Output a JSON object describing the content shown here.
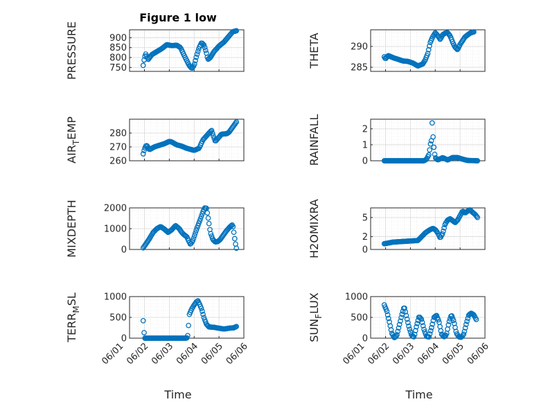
{
  "figure": {
    "title": "Figure 1 low"
  },
  "colors": {
    "marker": "#0072BD",
    "axis": "#262626",
    "grid": "#d9d9d9"
  },
  "chart_data": [
    {
      "type": "scatter",
      "panel": "pressure",
      "ylabel": "PRESSURE",
      "ylim": [
        730,
        940
      ],
      "yticks": [
        750,
        800,
        850,
        900
      ],
      "ytick_labels": [
        "750",
        "800",
        "850",
        "900"
      ],
      "xlim": [
        0,
        5
      ],
      "xtick_labels": [
        "06/01",
        "06/02",
        "06/03",
        "06/04",
        "06/05",
        "06/06"
      ],
      "show_xticks": false,
      "keypoints": [
        [
          0.95,
          760
        ],
        [
          1.0,
          800
        ],
        [
          1.05,
          818
        ],
        [
          1.15,
          790
        ],
        [
          1.3,
          815
        ],
        [
          1.5,
          830
        ],
        [
          1.7,
          845
        ],
        [
          1.9,
          865
        ],
        [
          2.1,
          860
        ],
        [
          2.3,
          862
        ],
        [
          2.45,
          850
        ],
        [
          2.6,
          810
        ],
        [
          2.7,
          785
        ],
        [
          2.8,
          760
        ],
        [
          2.9,
          745
        ],
        [
          3.0,
          760
        ],
        [
          3.1,
          810
        ],
        [
          3.2,
          850
        ],
        [
          3.3,
          875
        ],
        [
          3.4,
          862
        ],
        [
          3.5,
          820
        ],
        [
          3.55,
          790
        ],
        [
          3.65,
          800
        ],
        [
          3.8,
          830
        ],
        [
          4.0,
          858
        ],
        [
          4.2,
          878
        ],
        [
          4.4,
          908
        ],
        [
          4.55,
          930
        ],
        [
          4.7,
          935
        ]
      ]
    },
    {
      "type": "scatter",
      "panel": "theta",
      "ylabel": "THETA",
      "ylim": [
        284,
        294
      ],
      "yticks": [
        285,
        290
      ],
      "ytick_labels": [
        "285",
        "290"
      ],
      "xlim": [
        0,
        5
      ],
      "xtick_labels": [
        "06/01",
        "06/02",
        "06/03",
        "06/04",
        "06/05",
        "06/06"
      ],
      "show_xticks": false,
      "keypoints": [
        [
          0.95,
          287.5
        ],
        [
          1.0,
          287
        ],
        [
          1.1,
          287.8
        ],
        [
          1.3,
          287.3
        ],
        [
          1.5,
          286.9
        ],
        [
          1.7,
          286.5
        ],
        [
          1.9,
          286.4
        ],
        [
          2.1,
          286
        ],
        [
          2.3,
          285.3
        ],
        [
          2.5,
          285.8
        ],
        [
          2.6,
          286.8
        ],
        [
          2.7,
          288.3
        ],
        [
          2.8,
          291
        ],
        [
          2.9,
          292.3
        ],
        [
          3.0,
          293.3
        ],
        [
          3.1,
          292.6
        ],
        [
          3.2,
          291.7
        ],
        [
          3.3,
          292.8
        ],
        [
          3.4,
          293.2
        ],
        [
          3.5,
          293.3
        ],
        [
          3.6,
          292.5
        ],
        [
          3.7,
          291
        ],
        [
          3.8,
          289.8
        ],
        [
          3.9,
          289.2
        ],
        [
          4.0,
          290.5
        ],
        [
          4.2,
          292.3
        ],
        [
          4.4,
          293.2
        ],
        [
          4.55,
          293.5
        ]
      ]
    },
    {
      "type": "scatter",
      "panel": "air_temp",
      "ylabel": "AIR_TEMP",
      "ylim": [
        260,
        290
      ],
      "yticks": [
        260,
        270,
        280
      ],
      "ytick_labels": [
        "260",
        "270",
        "280"
      ],
      "xlim": [
        0,
        5
      ],
      "xtick_labels": [
        "06/01",
        "06/02",
        "06/03",
        "06/04",
        "06/05",
        "06/06"
      ],
      "show_xticks": false,
      "keypoints": [
        [
          0.95,
          265
        ],
        [
          1.0,
          268.5
        ],
        [
          1.05,
          270.5
        ],
        [
          1.1,
          271
        ],
        [
          1.2,
          268
        ],
        [
          1.4,
          270
        ],
        [
          1.6,
          271.2
        ],
        [
          1.8,
          272.3
        ],
        [
          2.0,
          274
        ],
        [
          2.1,
          273.5
        ],
        [
          2.3,
          271.5
        ],
        [
          2.5,
          270.5
        ],
        [
          2.7,
          269
        ],
        [
          2.9,
          268
        ],
        [
          3.0,
          267.5
        ],
        [
          3.2,
          269
        ],
        [
          3.35,
          275
        ],
        [
          3.5,
          278
        ],
        [
          3.6,
          280
        ],
        [
          3.7,
          282
        ],
        [
          3.75,
          279
        ],
        [
          3.85,
          274
        ],
        [
          3.95,
          276
        ],
        [
          4.1,
          279.2
        ],
        [
          4.3,
          279.5
        ],
        [
          4.4,
          280.5
        ],
        [
          4.5,
          283
        ],
        [
          4.6,
          285.5
        ],
        [
          4.7,
          288
        ]
      ]
    },
    {
      "type": "scatter",
      "panel": "rainfall",
      "ylabel": "RAINFALL",
      "ylim": [
        0,
        2.6
      ],
      "yticks": [
        0,
        1,
        2
      ],
      "ytick_labels": [
        "0",
        "1",
        "2"
      ],
      "xlim": [
        0,
        5
      ],
      "xtick_labels": [
        "06/01",
        "06/02",
        "06/03",
        "06/04",
        "06/05",
        "06/06"
      ],
      "show_xticks": false,
      "keypoints": [
        [
          0.95,
          0
        ],
        [
          2.55,
          0
        ],
        [
          2.65,
          0.1
        ],
        [
          2.75,
          0.4
        ],
        [
          2.8,
          1.0
        ],
        [
          2.85,
          1.3
        ],
        [
          2.88,
          2.5
        ],
        [
          2.92,
          1.2
        ],
        [
          2.97,
          0.5
        ],
        [
          3.0,
          0.2
        ],
        [
          3.1,
          0.05
        ],
        [
          3.3,
          0.2
        ],
        [
          3.5,
          0.05
        ],
        [
          3.7,
          0.2
        ],
        [
          3.9,
          0.2
        ],
        [
          4.1,
          0.1
        ],
        [
          4.3,
          0.02
        ],
        [
          4.7,
          0
        ]
      ]
    },
    {
      "type": "scatter",
      "panel": "mixdepth",
      "ylabel": "MIXDEPTH",
      "ylim": [
        0,
        2000
      ],
      "yticks": [
        0,
        1000,
        2000
      ],
      "ytick_labels": [
        "0",
        "1000",
        "2000"
      ],
      "xlim": [
        0,
        5
      ],
      "xtick_labels": [
        "06/01",
        "06/02",
        "06/03",
        "06/04",
        "06/05",
        "06/06"
      ],
      "show_xticks": false,
      "keypoints": [
        [
          0.95,
          80
        ],
        [
          1.05,
          250
        ],
        [
          1.2,
          520
        ],
        [
          1.35,
          820
        ],
        [
          1.5,
          1000
        ],
        [
          1.65,
          1100
        ],
        [
          1.8,
          980
        ],
        [
          1.95,
          820
        ],
        [
          2.1,
          950
        ],
        [
          2.25,
          1150
        ],
        [
          2.4,
          1000
        ],
        [
          2.5,
          820
        ],
        [
          2.6,
          700
        ],
        [
          2.7,
          620
        ],
        [
          2.8,
          360
        ],
        [
          2.85,
          250
        ],
        [
          2.95,
          430
        ],
        [
          3.1,
          980
        ],
        [
          3.25,
          1460
        ],
        [
          3.35,
          1800
        ],
        [
          3.42,
          2000
        ],
        [
          3.5,
          1980
        ],
        [
          3.58,
          1400
        ],
        [
          3.65,
          820
        ],
        [
          3.75,
          480
        ],
        [
          3.85,
          360
        ],
        [
          3.95,
          380
        ],
        [
          4.05,
          480
        ],
        [
          4.15,
          650
        ],
        [
          4.3,
          900
        ],
        [
          4.45,
          1100
        ],
        [
          4.55,
          1200
        ],
        [
          4.6,
          800
        ],
        [
          4.65,
          350
        ],
        [
          4.7,
          60
        ]
      ]
    },
    {
      "type": "scatter",
      "panel": "h2omixra",
      "ylabel": "H2OMIXRA",
      "ylim": [
        0,
        6.5
      ],
      "yticks": [
        0,
        2,
        5
      ],
      "ytick_labels": [
        "0",
        "2",
        "5"
      ],
      "xlim": [
        0,
        5
      ],
      "xtick_labels": [
        "06/01",
        "06/02",
        "06/03",
        "06/04",
        "06/05",
        "06/06"
      ],
      "show_xticks": false,
      "keypoints": [
        [
          0.95,
          0.9
        ],
        [
          1.1,
          1.0
        ],
        [
          1.3,
          1.15
        ],
        [
          1.5,
          1.2
        ],
        [
          1.7,
          1.25
        ],
        [
          1.9,
          1.3
        ],
        [
          2.1,
          1.35
        ],
        [
          2.3,
          1.4
        ],
        [
          2.45,
          2.0
        ],
        [
          2.6,
          2.6
        ],
        [
          2.75,
          3.0
        ],
        [
          2.9,
          3.3
        ],
        [
          3.0,
          3.1
        ],
        [
          3.1,
          2.6
        ],
        [
          3.2,
          1.8
        ],
        [
          3.3,
          2.5
        ],
        [
          3.4,
          4.0
        ],
        [
          3.5,
          4.6
        ],
        [
          3.6,
          4.8
        ],
        [
          3.7,
          4.5
        ],
        [
          3.8,
          4.2
        ],
        [
          3.9,
          4.6
        ],
        [
          4.0,
          5.3
        ],
        [
          4.1,
          6.0
        ],
        [
          4.2,
          5.7
        ],
        [
          4.3,
          6.0
        ],
        [
          4.4,
          6.2
        ],
        [
          4.5,
          5.8
        ],
        [
          4.6,
          5.5
        ],
        [
          4.7,
          5.0
        ]
      ]
    },
    {
      "type": "scatter",
      "panel": "terr_msl",
      "ylabel": "TERR_MSL",
      "ylim": [
        0,
        1000
      ],
      "yticks": [
        0,
        500,
        1000
      ],
      "ytick_labels": [
        "0",
        "500",
        "1000"
      ],
      "xlim": [
        0,
        5
      ],
      "xtick_labels": [
        "06/01",
        "06/02",
        "06/03",
        "06/04",
        "06/05",
        "06/06"
      ],
      "show_xticks": true,
      "keypoints": [
        [
          0.95,
          420
        ],
        [
          1.0,
          0
        ],
        [
          2.7,
          0
        ],
        [
          2.75,
          80
        ],
        [
          2.8,
          560
        ],
        [
          2.9,
          700
        ],
        [
          3.0,
          800
        ],
        [
          3.1,
          880
        ],
        [
          3.15,
          900
        ],
        [
          3.2,
          840
        ],
        [
          3.3,
          700
        ],
        [
          3.4,
          480
        ],
        [
          3.5,
          330
        ],
        [
          3.6,
          270
        ],
        [
          3.8,
          260
        ],
        [
          4.0,
          240
        ],
        [
          4.2,
          220
        ],
        [
          4.4,
          240
        ],
        [
          4.6,
          250
        ],
        [
          4.7,
          280
        ]
      ]
    },
    {
      "type": "scatter",
      "panel": "sun_flux",
      "ylabel": "SUN_FLUX",
      "ylim": [
        0,
        1000
      ],
      "yticks": [
        0,
        500,
        1000
      ],
      "ytick_labels": [
        "0",
        "500",
        "1000"
      ],
      "xlim": [
        0,
        5
      ],
      "xtick_labels": [
        "06/01",
        "06/02",
        "06/03",
        "06/04",
        "06/05",
        "06/06"
      ],
      "show_xticks": true,
      "keypoints": [
        [
          0.95,
          800
        ],
        [
          1.05,
          650
        ],
        [
          1.15,
          400
        ],
        [
          1.25,
          120
        ],
        [
          1.35,
          10
        ],
        [
          1.45,
          60
        ],
        [
          1.55,
          300
        ],
        [
          1.65,
          550
        ],
        [
          1.75,
          760
        ],
        [
          1.85,
          500
        ],
        [
          1.95,
          250
        ],
        [
          2.05,
          60
        ],
        [
          2.15,
          30
        ],
        [
          2.25,
          300
        ],
        [
          2.35,
          520
        ],
        [
          2.45,
          450
        ],
        [
          2.55,
          200
        ],
        [
          2.65,
          40
        ],
        [
          2.75,
          30
        ],
        [
          2.85,
          250
        ],
        [
          2.95,
          500
        ],
        [
          3.05,
          550
        ],
        [
          3.15,
          400
        ],
        [
          3.25,
          100
        ],
        [
          3.35,
          30
        ],
        [
          3.45,
          80
        ],
        [
          3.55,
          380
        ],
        [
          3.65,
          560
        ],
        [
          3.75,
          400
        ],
        [
          3.85,
          120
        ],
        [
          3.95,
          30
        ],
        [
          4.05,
          20
        ],
        [
          4.15,
          100
        ],
        [
          4.25,
          350
        ],
        [
          4.35,
          560
        ],
        [
          4.45,
          600
        ],
        [
          4.55,
          560
        ],
        [
          4.65,
          450
        ]
      ]
    }
  ],
  "xlabel": "Time"
}
